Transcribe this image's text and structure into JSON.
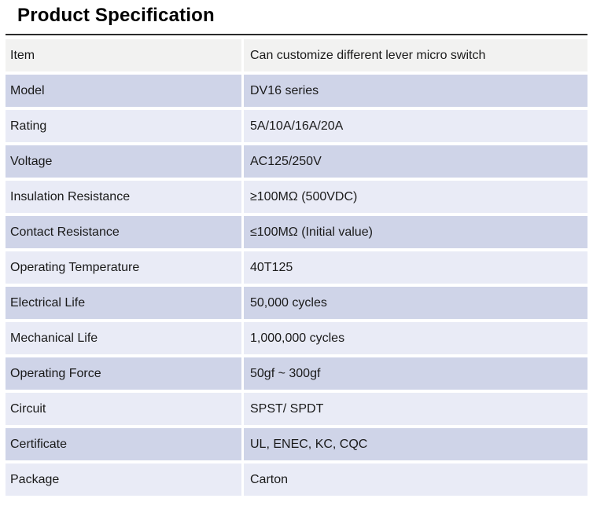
{
  "page": {
    "title": "Product Specification"
  },
  "table": {
    "rows": [
      {
        "label": "Item",
        "value": "Can customize different lever micro switch"
      },
      {
        "label": "Model",
        "value": "DV16 series"
      },
      {
        "label": "Rating",
        "value": "5A/10A/16A/20A"
      },
      {
        "label": "Voltage",
        "value": "AC125/250V"
      },
      {
        "label": "Insulation Resistance",
        "value": "≥100MΩ (500VDC)"
      },
      {
        "label": "Contact Resistance",
        "value": "≤100MΩ (Initial value)"
      },
      {
        "label": "Operating Temperature",
        "value": "40T125"
      },
      {
        "label": "Electrical Life",
        "value": "50,000 cycles"
      },
      {
        "label": "Mechanical Life",
        "value": "1,000,000 cycles"
      },
      {
        "label": "Operating Force",
        "value": "50gf ~ 300gf"
      },
      {
        "label": "Circuit",
        "value": "SPST/ SPDT"
      },
      {
        "label": "Certificate",
        "value": "UL, ENEC, KC, CQC"
      },
      {
        "label": "Package",
        "value": "Carton"
      }
    ]
  },
  "colors": {
    "row_gray": "#f2f2f1",
    "row_dark": "#cfd4e8",
    "row_light": "#e9ebf6",
    "rule": "#2b2b2b",
    "text": "#1a1a1a"
  }
}
